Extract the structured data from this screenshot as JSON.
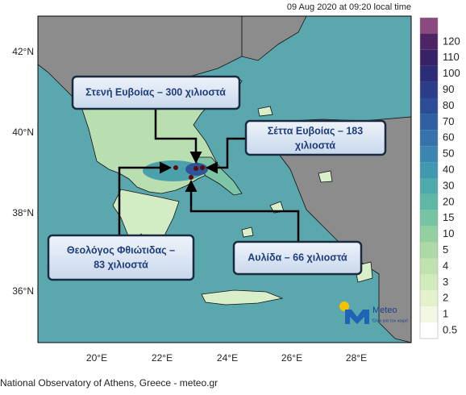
{
  "header": {
    "timestamp": "09 Aug 2020 at 09:20 local time"
  },
  "map": {
    "lat_labels": [
      "42°N",
      "40°N",
      "38°N",
      "36°N"
    ],
    "lon_labels": [
      "20°E",
      "22°E",
      "24°E",
      "26°E",
      "28°E"
    ]
  },
  "colorbar": {
    "ticks": [
      0.5,
      1,
      2,
      3,
      4,
      5,
      10,
      15,
      20,
      30,
      40,
      50,
      60,
      70,
      80,
      90,
      100,
      110,
      120
    ],
    "colors": [
      "#ffffff",
      "#f3f8e4",
      "#e3f2cb",
      "#d2ebbd",
      "#c0e2b1",
      "#acd9a5",
      "#92cfa1",
      "#76c4a1",
      "#5fb8a6",
      "#4dabac",
      "#4199b1",
      "#3b86b0",
      "#3573aa",
      "#2f60a1",
      "#2b4c96",
      "#2a3c8a",
      "#2b2d78",
      "#372268",
      "#4d2466"
    ]
  },
  "annotations": [
    {
      "lines": [
        "Στενή Ευβοίας – 300 χιλιοστά"
      ]
    },
    {
      "lines": [
        "Σέττα Ευβοίας – 183",
        "χιλιοστά"
      ]
    },
    {
      "lines": [
        "Θεολόγος Φθιώτιδας –",
        "83 χιλιοστά"
      ]
    },
    {
      "lines": [
        "Αυλίδα – 66 χιλιοστά"
      ]
    }
  ],
  "logo": {
    "name": "Meteo",
    "slogan": "Όλοι για τον καιρό"
  },
  "footer": "National Observatory of Athens, Greece - meteo.gr"
}
